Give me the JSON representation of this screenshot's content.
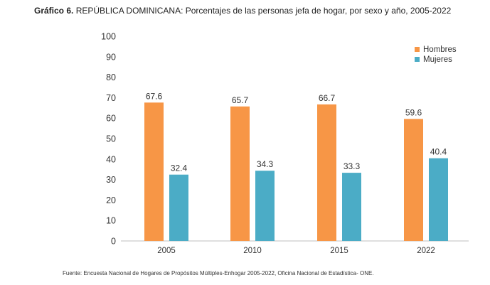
{
  "header": {
    "title_prefix": "Gráfico 6.",
    "title_text": "REPÚBLICA DOMINICANA: Porcentajes de las personas jefa de hogar, por sexo y año, 2005-2022"
  },
  "footer": {
    "source": "Fuente: Encuesta Nacional de Hogares de Propósitos Múltiples-Enhogar 2005-2022, Oficina Nacional de Estadística- ONE."
  },
  "chart_data": {
    "type": "bar",
    "title": "REPÚBLICA DOMINICANA: Porcentajes de las personas jefa de hogar, por sexo y año, 2005-2022",
    "categories": [
      "2005",
      "2010",
      "2015",
      "2022"
    ],
    "series": [
      {
        "name": "Hombres",
        "color": "#f79646",
        "values": [
          67.6,
          65.7,
          66.7,
          59.6
        ]
      },
      {
        "name": "Mujeres",
        "color": "#4bacc6",
        "values": [
          32.4,
          34.3,
          33.3,
          40.4
        ]
      }
    ],
    "value_labels": {
      "Hombres": [
        "67.6",
        "65.7",
        "66.7",
        "59.6"
      ],
      "Mujeres": [
        "32.4",
        "34.3",
        "33.3",
        "40.4"
      ]
    },
    "ylim": [
      0,
      100
    ],
    "yticks": [
      "0",
      "10",
      "20",
      "30",
      "40",
      "50",
      "60",
      "70",
      "80",
      "90",
      "100"
    ],
    "xlabel": "",
    "ylabel": "",
    "legend_position": "top-right",
    "grid": false
  }
}
